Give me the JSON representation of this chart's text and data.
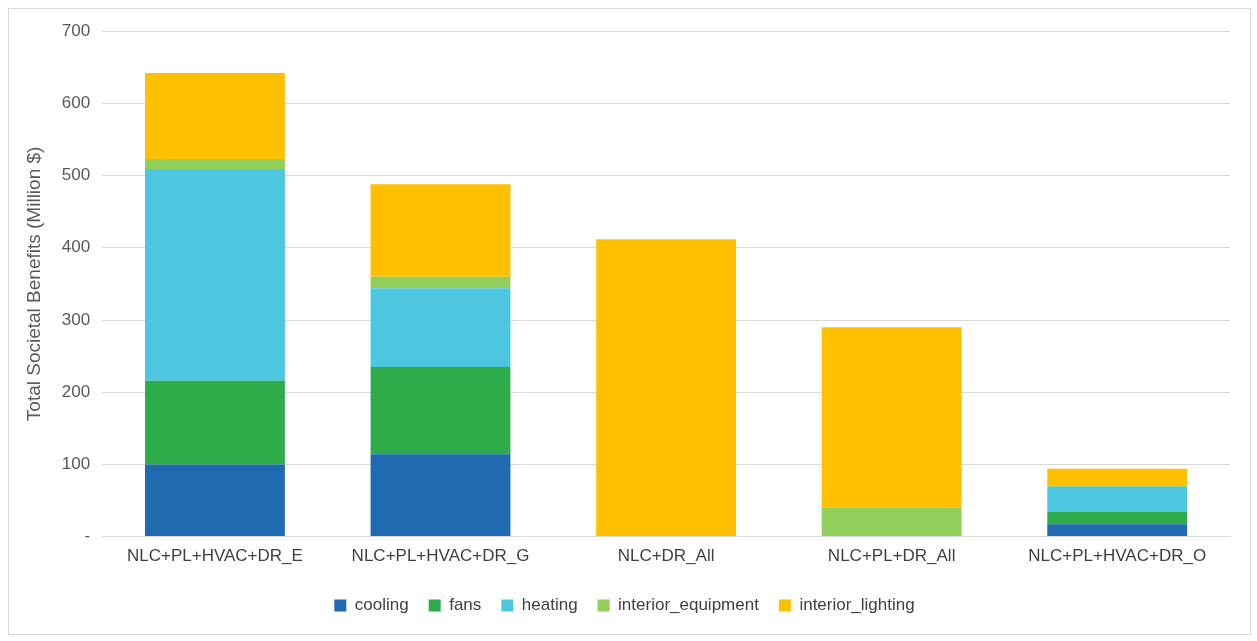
{
  "chart_data": {
    "type": "bar",
    "stacked": true,
    "ylabel": "Total Societal Benefits (Million $)",
    "categories": [
      "NLC+PL+HVAC+DR_E",
      "NLC+PL+HVAC+DR_G",
      "NLC+DR_All",
      "NLC+PL+DR_All",
      "NLC+PL+HVAC+DR_O"
    ],
    "series": [
      {
        "name": "cooling",
        "color": "#1f6ab0",
        "values": [
          100,
          114,
          0,
          0,
          17
        ]
      },
      {
        "name": "fans",
        "color": "#2eac4a",
        "values": [
          116,
          121,
          0,
          0,
          17
        ]
      },
      {
        "name": "heating",
        "color": "#4dc6e0",
        "values": [
          293,
          109,
          0,
          0,
          35
        ]
      },
      {
        "name": "interior_equipment",
        "color": "#92cf5a",
        "values": [
          14,
          16,
          0,
          40,
          2
        ]
      },
      {
        "name": "interior_lighting",
        "color": "#ffc000",
        "values": [
          119,
          128,
          412,
          250,
          23
        ]
      }
    ],
    "ylim": [
      0,
      700
    ],
    "yticks": [
      {
        "value": 0,
        "label": "-"
      },
      100,
      200,
      300,
      400,
      500,
      600,
      700
    ],
    "grid": "y",
    "legend": "bottom"
  }
}
